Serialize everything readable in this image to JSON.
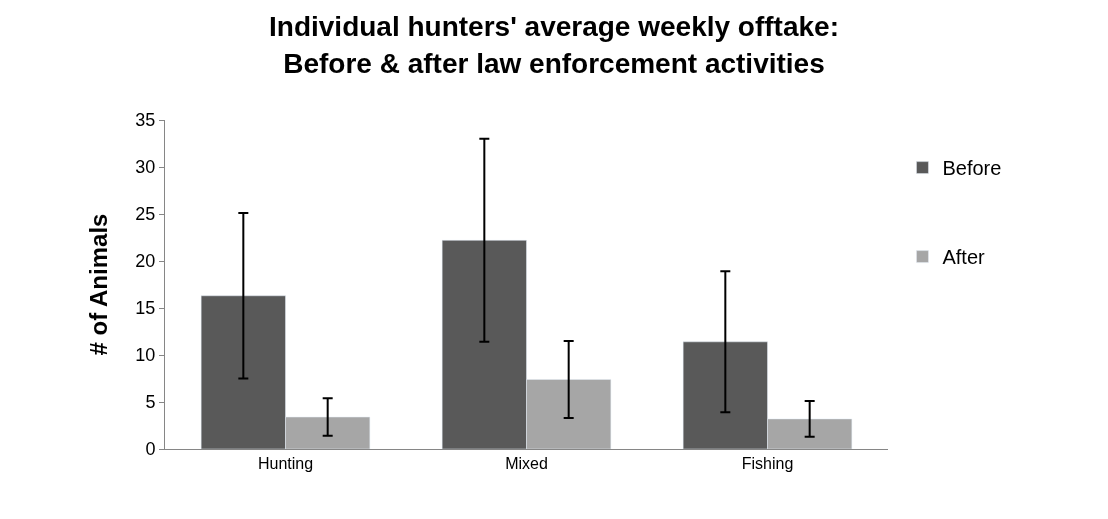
{
  "chart_data": {
    "type": "bar",
    "title": "Individual hunters' average weekly offtake:\nBefore & after law enforcement activities",
    "ylabel": "# of Animals",
    "categories": [
      "Hunting",
      "Mixed",
      "Fishing"
    ],
    "series": [
      {
        "name": "Before",
        "color": "#595959",
        "values": [
          16.3,
          22.2,
          11.4
        ],
        "errors": [
          8.8,
          10.8,
          7.5
        ]
      },
      {
        "name": "After",
        "color": "#a6a6a6",
        "values": [
          3.4,
          7.4,
          3.2
        ],
        "errors": [
          2.0,
          4.1,
          1.9
        ]
      }
    ],
    "ylim": [
      0,
      35
    ],
    "yticks": [
      0,
      5,
      10,
      15,
      20,
      25,
      30,
      35
    ],
    "legend": "right"
  }
}
